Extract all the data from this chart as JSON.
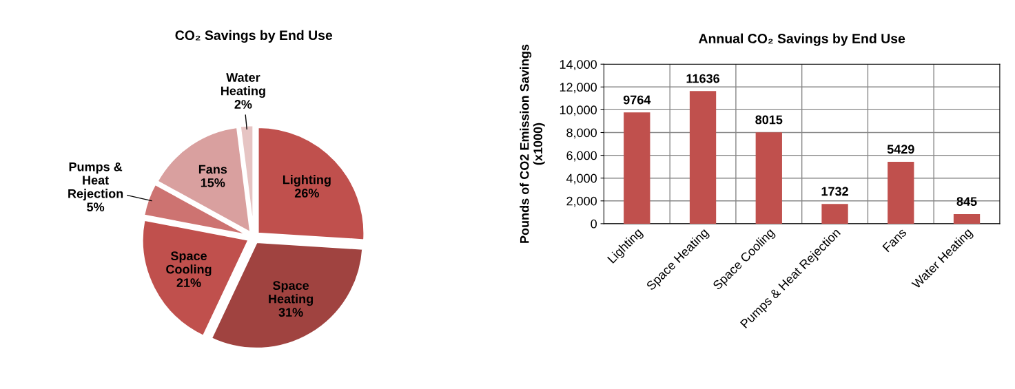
{
  "chart_data": [
    {
      "type": "pie",
      "title": "CO₂ Savings by End Use",
      "categories": [
        "Lighting",
        "Space\nHeating",
        "Space\nCooling",
        "Pumps &\nHeat\nRejection",
        "Fans",
        "Water\nHeating"
      ],
      "values": [
        26,
        31,
        21,
        5,
        15,
        2
      ],
      "value_labels": [
        "26%",
        "31%",
        "21%",
        "5%",
        "15%",
        "2%"
      ],
      "colors": [
        "#c0504d",
        "#a04340",
        "#c0504d",
        "#cd7371",
        "#d9a09f",
        "#e6c4c3"
      ]
    },
    {
      "type": "bar",
      "title": "Annual CO₂ Savings by End Use",
      "ylabel": "Pounds of CO2 Emission Savings\n(x1000)",
      "categories": [
        "Lighting",
        "Space Heating",
        "Space Cooling",
        "Pumps & Heat Rejection",
        "Fans",
        "Water Heating"
      ],
      "values": [
        9764,
        11636,
        8015,
        1732,
        5429,
        845
      ],
      "color": "#c0504d",
      "ylim": [
        0,
        14000
      ],
      "yticks": [
        {
          "value": 0,
          "label": "0"
        },
        {
          "value": 2000,
          "label": "2,000"
        },
        {
          "value": 4000,
          "label": "4,000"
        },
        {
          "value": 6000,
          "label": "6,000"
        },
        {
          "value": 8000,
          "label": "8,000"
        },
        {
          "value": 10000,
          "label": "10,000"
        },
        {
          "value": 12000,
          "label": "12,000"
        },
        {
          "value": 14000,
          "label": "14,000"
        }
      ],
      "grid": "y",
      "data_labels": true
    }
  ]
}
